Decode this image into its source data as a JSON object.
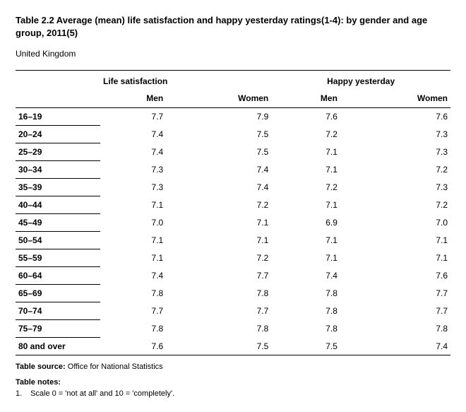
{
  "title": "Table 2.2 Average (mean) life satisfaction and happy yesterday ratings(1-4): by gender and age group, 2011(5)",
  "region": "United Kingdom",
  "table": {
    "type": "table",
    "group_headers": [
      "Life satisfaction",
      "Happy yesterday"
    ],
    "sub_headers": [
      "Men",
      "Women",
      "Men",
      "Women"
    ],
    "columns": [
      "age_group",
      "ls_men",
      "ls_women",
      "hy_men",
      "hy_women"
    ],
    "rows": [
      {
        "age": "16–19",
        "ls_men": "7.7",
        "ls_women": "7.9",
        "hy_men": "7.6",
        "hy_women": "7.6"
      },
      {
        "age": "20–24",
        "ls_men": "7.4",
        "ls_women": "7.5",
        "hy_men": "7.2",
        "hy_women": "7.3"
      },
      {
        "age": "25–29",
        "ls_men": "7.4",
        "ls_women": "7.5",
        "hy_men": "7.1",
        "hy_women": "7.3"
      },
      {
        "age": "30–34",
        "ls_men": "7.3",
        "ls_women": "7.4",
        "hy_men": "7.1",
        "hy_women": "7.2"
      },
      {
        "age": "35–39",
        "ls_men": "7.3",
        "ls_women": "7.4",
        "hy_men": "7.2",
        "hy_women": "7.3"
      },
      {
        "age": "40–44",
        "ls_men": "7.1",
        "ls_women": "7.2",
        "hy_men": "7.1",
        "hy_women": "7.2"
      },
      {
        "age": "45–49",
        "ls_men": "7.0",
        "ls_women": "7.1",
        "hy_men": "6.9",
        "hy_women": "7.0"
      },
      {
        "age": "50–54",
        "ls_men": "7.1",
        "ls_women": "7.1",
        "hy_men": "7.1",
        "hy_women": "7.1"
      },
      {
        "age": "55–59",
        "ls_men": "7.1",
        "ls_women": "7.2",
        "hy_men": "7.1",
        "hy_women": "7.1"
      },
      {
        "age": "60–64",
        "ls_men": "7.4",
        "ls_women": "7.7",
        "hy_men": "7.4",
        "hy_women": "7.6"
      },
      {
        "age": "65–69",
        "ls_men": "7.8",
        "ls_women": "7.8",
        "hy_men": "7.8",
        "hy_women": "7.7"
      },
      {
        "age": "70–74",
        "ls_men": "7.7",
        "ls_women": "7.7",
        "hy_men": "7.8",
        "hy_women": "7.7"
      },
      {
        "age": "75–79",
        "ls_men": "7.8",
        "ls_women": "7.8",
        "hy_men": "7.8",
        "hy_women": "7.8"
      },
      {
        "age": "80 and over",
        "ls_men": "7.6",
        "ls_women": "7.5",
        "hy_men": "7.5",
        "hy_women": "7.4"
      }
    ],
    "background_color": "#ffffff",
    "rule_color": "#000000",
    "font_size": 12,
    "header_weight": "bold"
  },
  "source_label": "Table source:",
  "source_value": "Office for National Statistics",
  "notes_label": "Table notes:",
  "notes": [
    {
      "num": "1.",
      "text": "Scale 0 = 'not at all' and 10 = 'completely'."
    }
  ]
}
